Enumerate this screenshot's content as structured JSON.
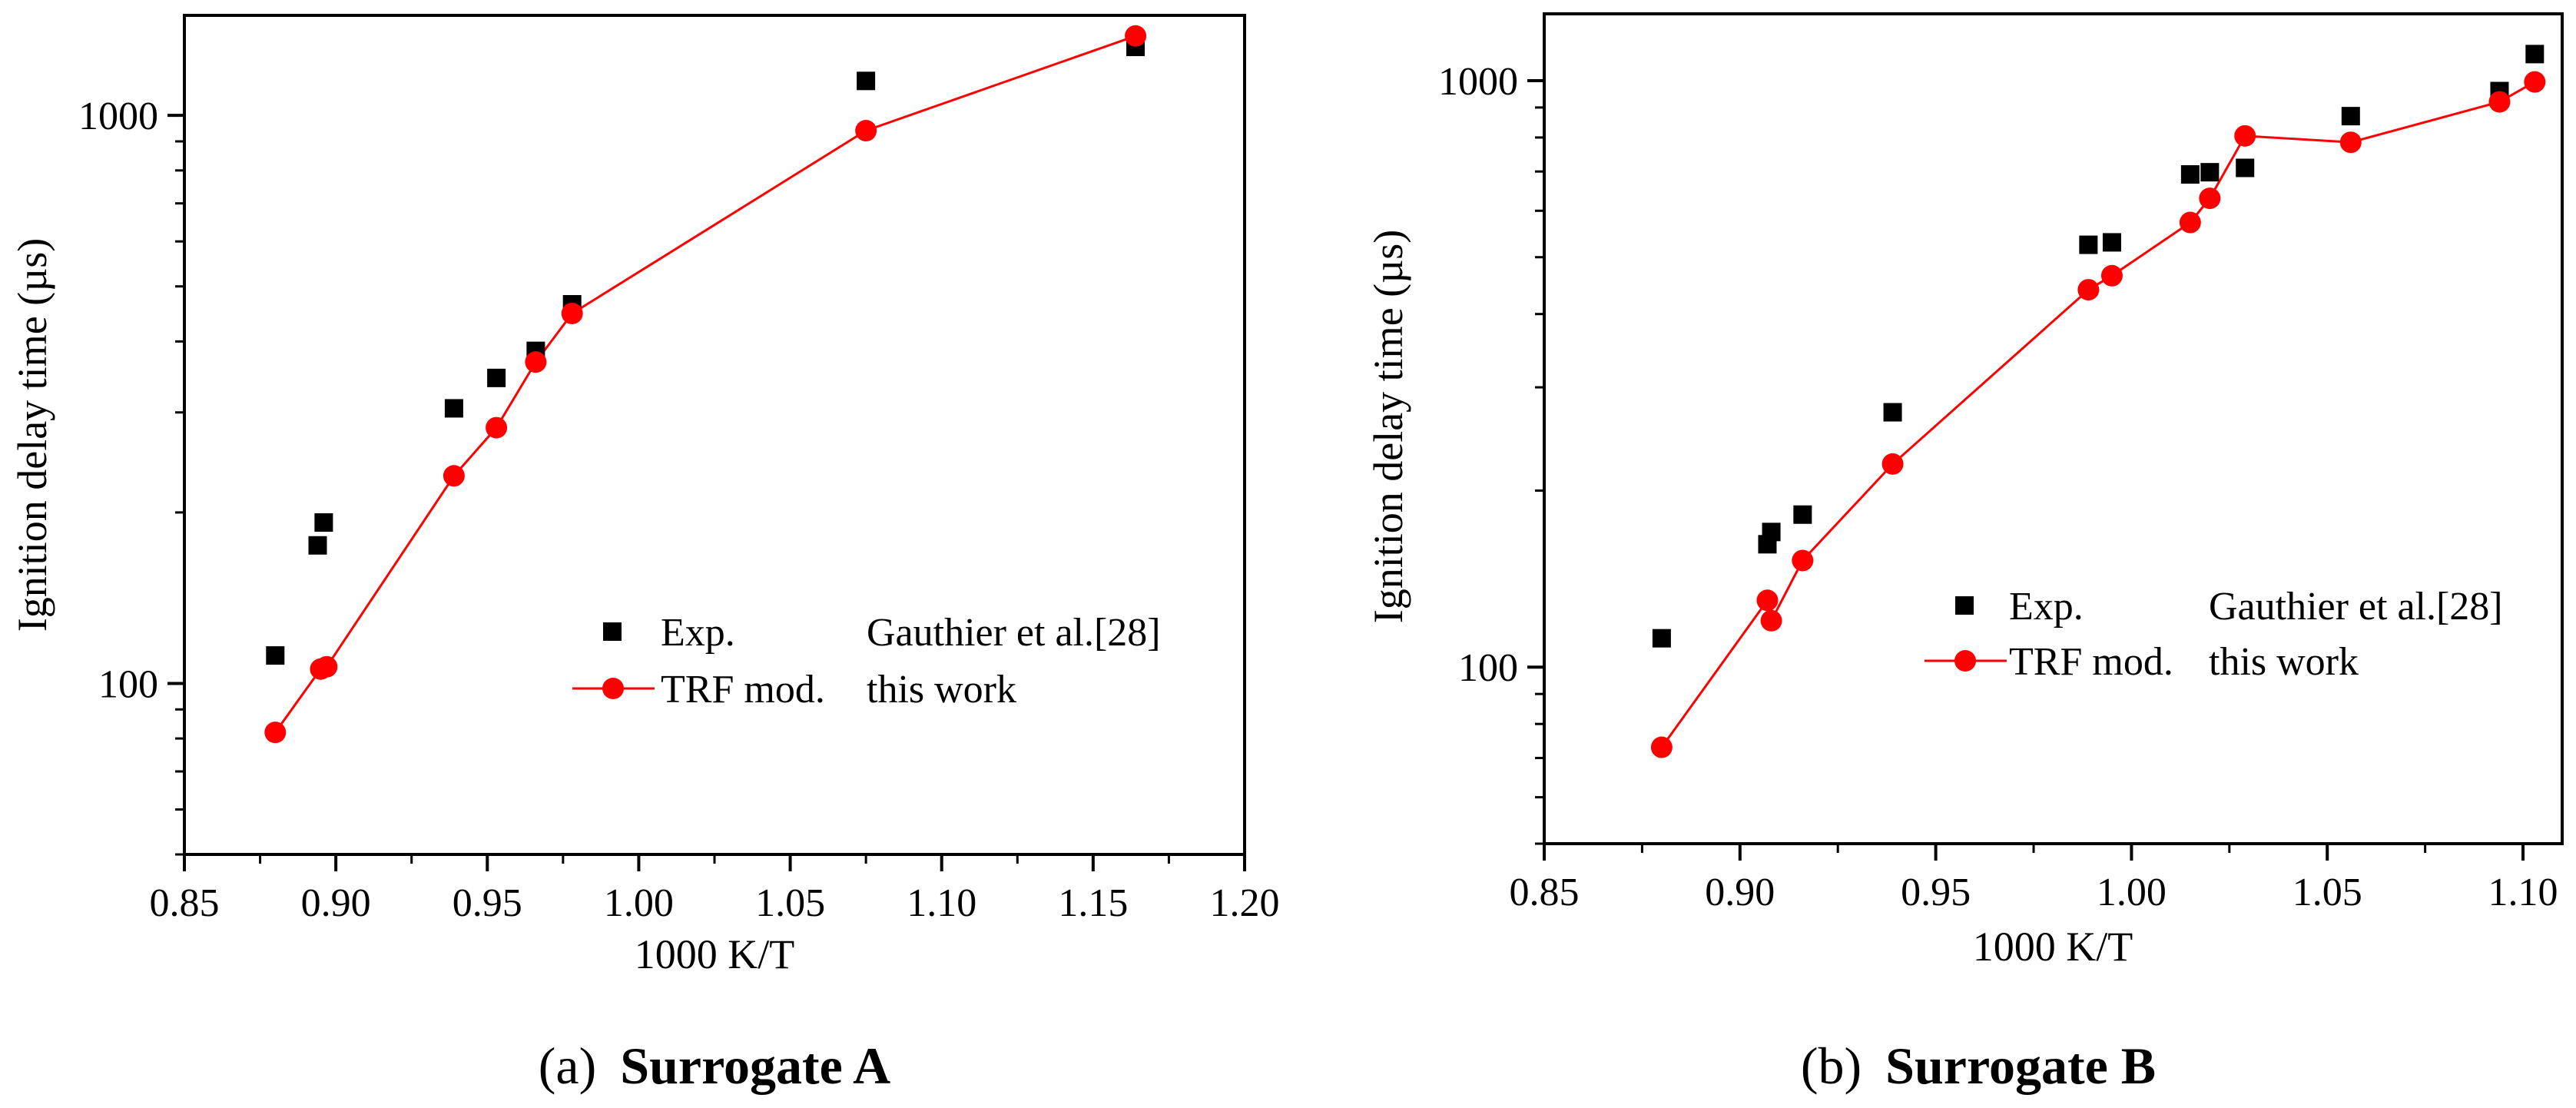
{
  "colors": {
    "experiment": "#000000",
    "model": "#ff0000",
    "axis": "#000000"
  },
  "chart_data": [
    {
      "type": "scatter",
      "panel_label": "(a)",
      "panel_title": "Surrogate A",
      "xlabel": "1000 K/T",
      "ylabel": "Ignition delay time (µs)",
      "xlim": [
        0.85,
        1.2
      ],
      "ylim": [
        50,
        1500
      ],
      "yscale": "log",
      "xticks": [
        "0.85",
        "0.90",
        "0.95",
        "1.00",
        "1.05",
        "1.10",
        "1.15",
        "1.20"
      ],
      "yticks": [
        "100",
        "1000"
      ],
      "grid": false,
      "legend_position": "lower-right",
      "series": [
        {
          "name": "Exp.",
          "source": "Gauthier et al.[28]",
          "marker": "square",
          "x": [
            0.88,
            0.894,
            0.896,
            0.939,
            0.953,
            0.966,
            0.978,
            1.075,
            1.164
          ],
          "y": [
            112,
            175,
            192,
            305,
            345,
            385,
            465,
            1150,
            1320
          ]
        },
        {
          "name": "TRF mod.",
          "source": "this work",
          "marker": "circle-line",
          "x": [
            0.88,
            0.895,
            0.897,
            0.939,
            0.953,
            0.966,
            0.978,
            1.075,
            1.164
          ],
          "y": [
            82,
            106,
            107,
            232,
            282,
            368,
            448,
            940,
            1380
          ]
        }
      ]
    },
    {
      "type": "scatter",
      "panel_label": "(b)",
      "panel_title": "Surrogate B",
      "xlabel": "1000 K/T",
      "ylabel": "Ignition delay time (µs)",
      "xlim": [
        0.85,
        1.11
      ],
      "ylim": [
        50,
        1300
      ],
      "yscale": "log",
      "xticks": [
        "0.85",
        "0.90",
        "0.95",
        "1.00",
        "1.05",
        "1.10"
      ],
      "yticks": [
        "100",
        "1000"
      ],
      "grid": false,
      "legend_position": "lower-right",
      "series": [
        {
          "name": "Exp.",
          "source": "Gauthier et al.[28]",
          "marker": "square",
          "x": [
            0.88,
            0.907,
            0.908,
            0.916,
            0.939,
            0.989,
            0.995,
            1.015,
            1.02,
            1.029,
            1.056,
            1.094,
            1.103
          ],
          "y": [
            112,
            162,
            170,
            182,
            272,
            525,
            530,
            692,
            698,
            710,
            870,
            960,
            1110
          ]
        },
        {
          "name": "TRF mod.",
          "source": "this work",
          "marker": "circle-line",
          "x": [
            0.88,
            0.907,
            0.908,
            0.916,
            0.939,
            0.989,
            0.995,
            1.015,
            1.02,
            1.029,
            1.056,
            1.094,
            1.103
          ],
          "y": [
            73,
            130,
            120,
            152,
            222,
            440,
            465,
            573,
            630,
            805,
            785,
            920,
            995
          ]
        }
      ]
    }
  ]
}
